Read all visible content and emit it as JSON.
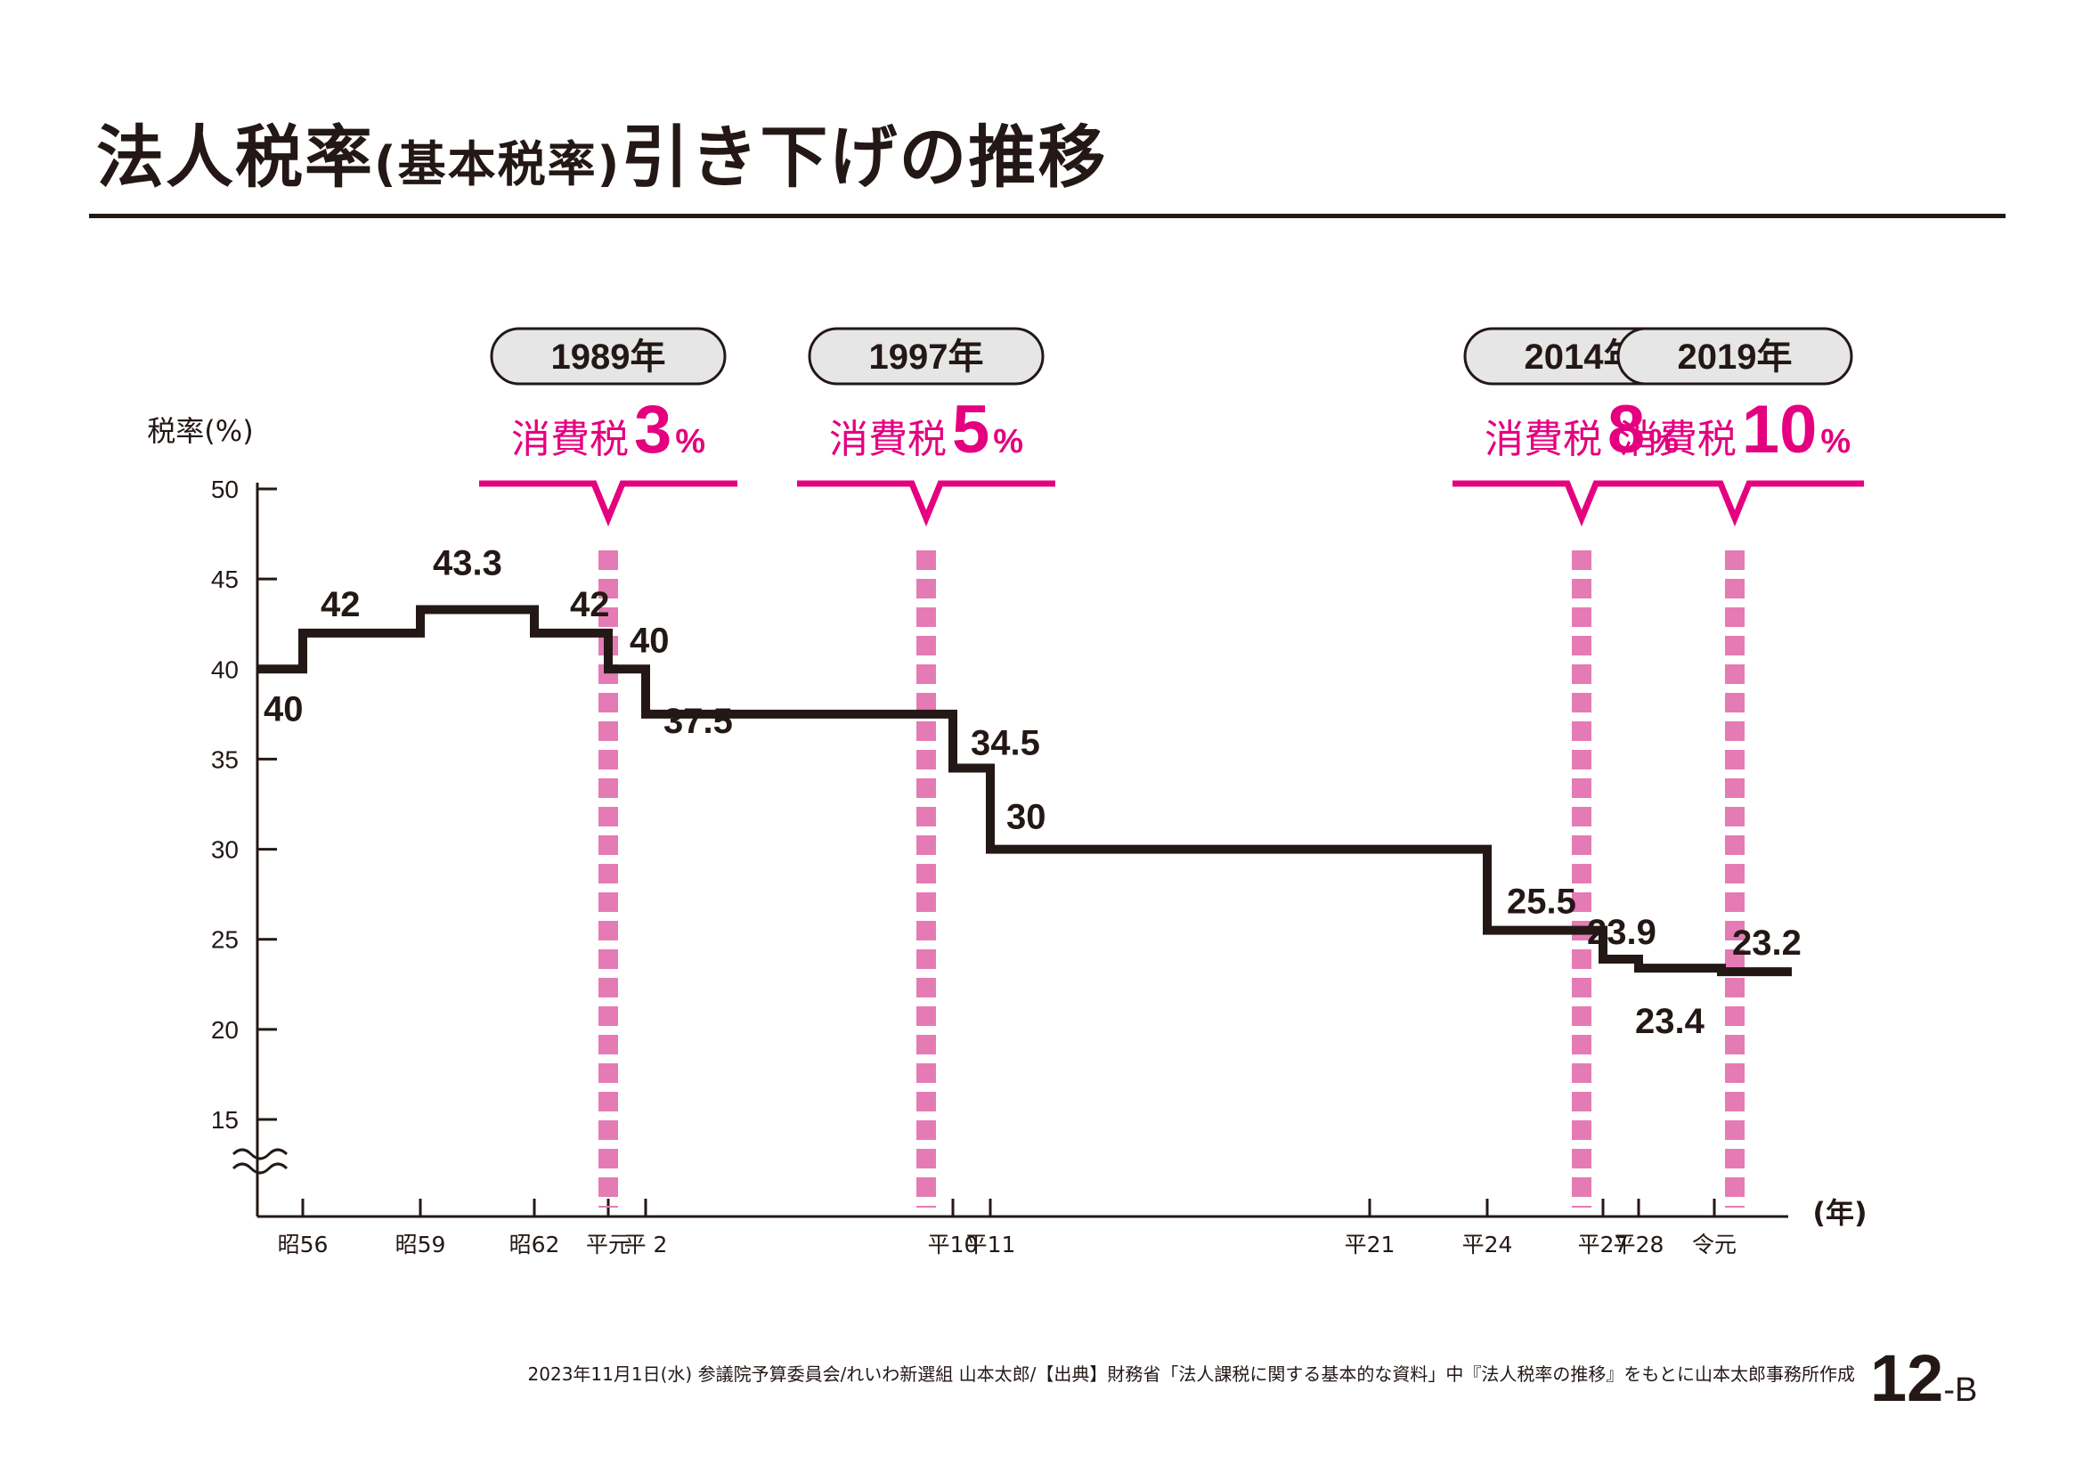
{
  "title": {
    "main_before": "法人税率",
    "sub": "(基本税率)",
    "main_after": "引き下げの推移"
  },
  "chart_data": {
    "type": "line",
    "step": true,
    "ylabel": "税率(%)",
    "xlabel": "(年)",
    "ylim": [
      15,
      50
    ],
    "yticks": [
      50,
      45,
      40,
      35,
      30,
      25,
      20,
      15
    ],
    "axis_break": true,
    "grid": false,
    "xticks": [
      {
        "year": 1981,
        "label": "昭56"
      },
      {
        "year": 1984,
        "label": "昭59"
      },
      {
        "year": 1987,
        "label": "昭62"
      },
      {
        "year": 1989,
        "label": "平元"
      },
      {
        "year": 1990,
        "label": "平 2"
      },
      {
        "year": 1998,
        "label": "平10"
      },
      {
        "year": 1999,
        "label": "平11"
      },
      {
        "year": 2009,
        "label": "平21"
      },
      {
        "year": 2012,
        "label": "平24"
      },
      {
        "year": 2015,
        "label": "平27"
      },
      {
        "year": 2016,
        "label": "平28"
      },
      {
        "year": 2019,
        "label": "令元"
      }
    ],
    "series": [
      {
        "steps": [
          {
            "from": 1980,
            "value": 40,
            "label": "40"
          },
          {
            "from": 1981,
            "value": 42,
            "label": "42"
          },
          {
            "from": 1984,
            "value": 43.3,
            "label": "43.3"
          },
          {
            "from": 1987,
            "value": 42,
            "label": "42"
          },
          {
            "from": 1989,
            "value": 40,
            "label": "40"
          },
          {
            "from": 1990,
            "value": 37.5,
            "label": "37.5"
          },
          {
            "from": 1998,
            "value": 34.5,
            "label": "34.5"
          },
          {
            "from": 1999,
            "value": 30,
            "label": "30"
          },
          {
            "from": 2012,
            "value": 25.5,
            "label": "25.5"
          },
          {
            "from": 2015,
            "value": 23.9,
            "label": "23.9"
          },
          {
            "from": 2016,
            "value": 23.4,
            "label": "23.4"
          },
          {
            "from": 2018,
            "value": 23.2,
            "label": "23.2"
          }
        ],
        "end": 2020
      }
    ],
    "annotations": [
      {
        "year_label": "1989年",
        "text": "消費税",
        "rate": "3",
        "unit": "%"
      },
      {
        "year_label": "1997年",
        "text": "消費税",
        "rate": "5",
        "unit": "%"
      },
      {
        "year_label": "2014年",
        "text": "消費税",
        "rate": "8",
        "unit": "%"
      },
      {
        "year_label": "2019年",
        "text": "消費税",
        "rate": "10",
        "unit": "%"
      }
    ],
    "colors": {
      "line": "#231815",
      "accent": "#e4007f",
      "dash": "#e57bb5",
      "pill_fill": "#e6e6e6"
    }
  },
  "footer": "2023年11月1日(水) 参議院予算委員会/れいわ新選組 山本太郎/【出典】財務省「法人課税に関する基本的な資料」中『法人税率の推移』をもとに山本太郎事務所作成",
  "page_number": {
    "main": "12",
    "suffix": "-B"
  }
}
